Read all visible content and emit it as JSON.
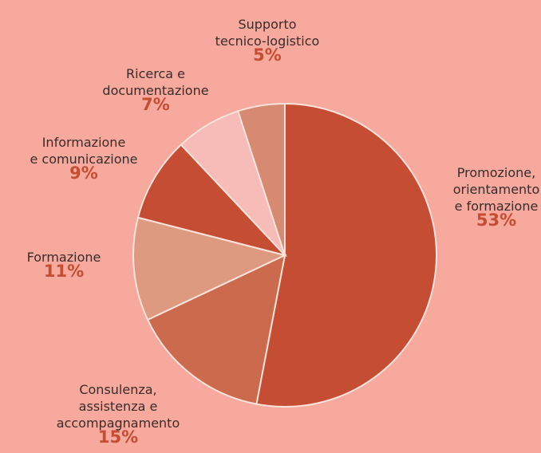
{
  "chart_data": {
    "type": "pie",
    "categories": [
      "Promozione,\norientamento\ne formazione",
      "Consulenza,\nassistenza e\naccompagnamento",
      "Formazione",
      "Informazione\ne comunicazione",
      "Ricerca e\ndocumentazione",
      "Supporto\ntecnico-logistico"
    ],
    "values": [
      53,
      15,
      11,
      9,
      7,
      5
    ],
    "value_labels": [
      "53%",
      "15%",
      "11%",
      "9%",
      "7%",
      "5%"
    ],
    "colors": [
      "#c44d33",
      "#cc6a4e",
      "#de9a80",
      "#c44d33",
      "#f7bcb8",
      "#d68a72"
    ]
  }
}
